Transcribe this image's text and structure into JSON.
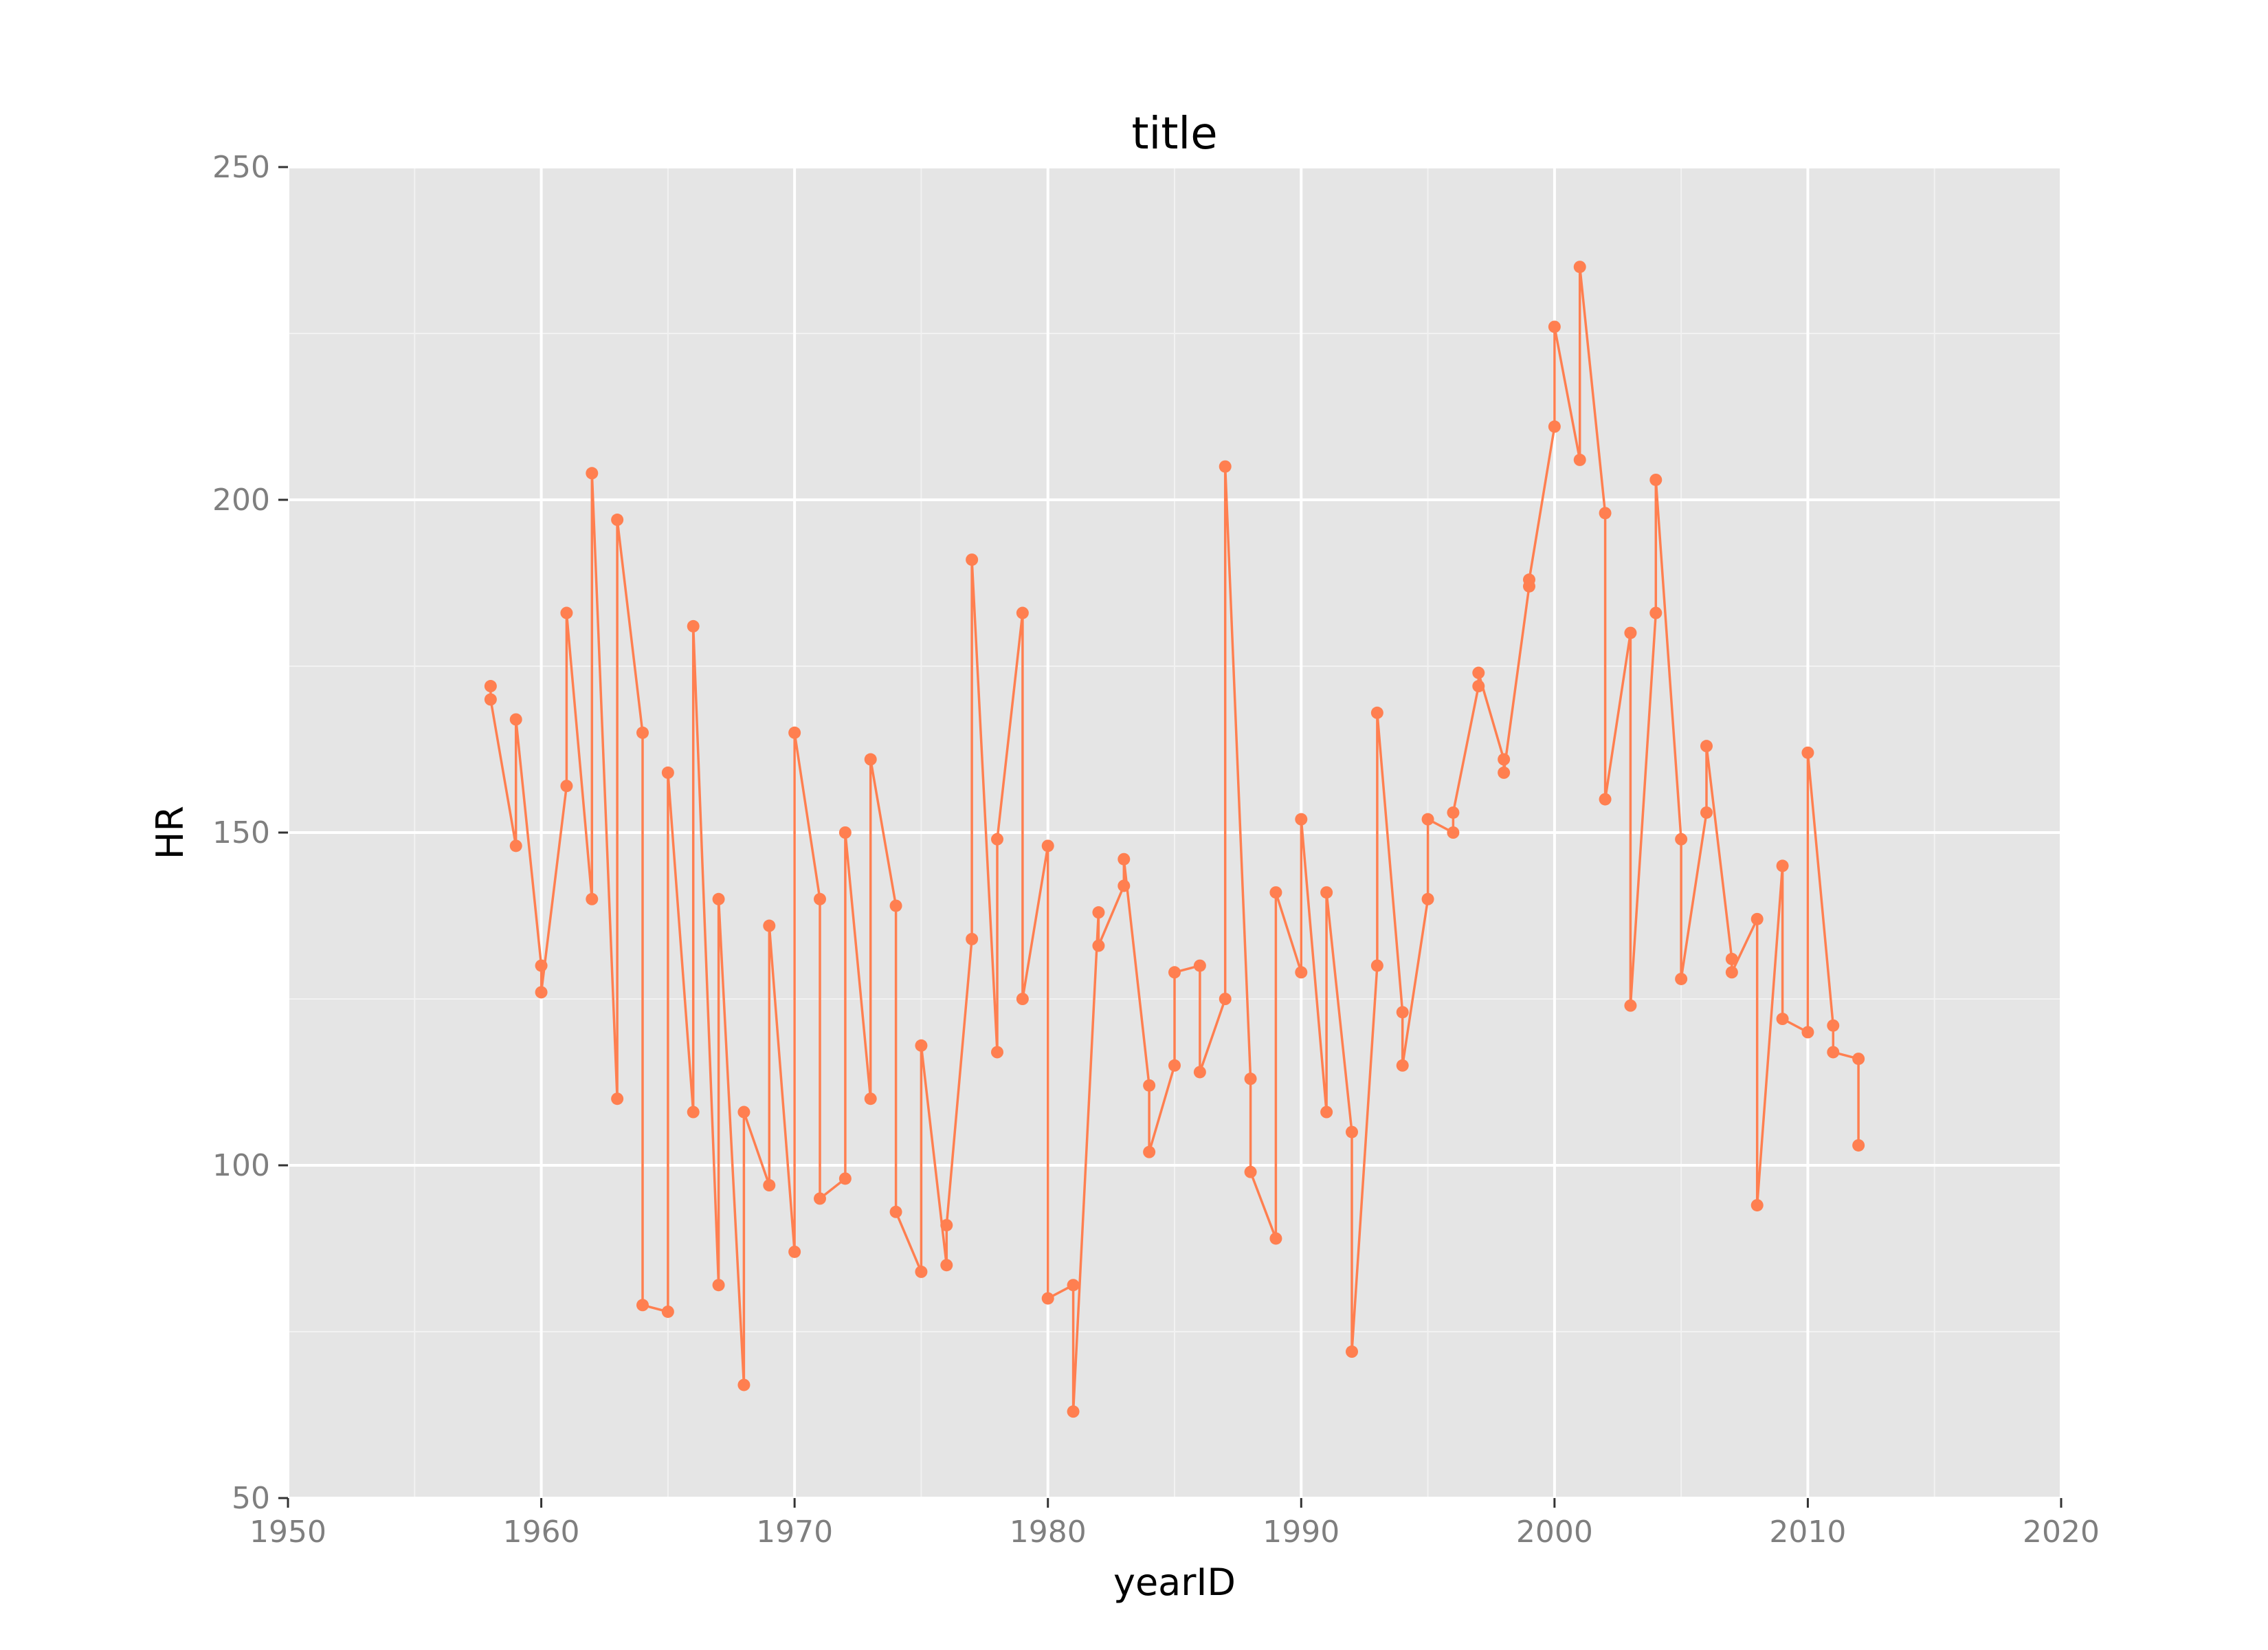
{
  "chart_data": {
    "type": "line",
    "title": "title",
    "xlabel": "yearID",
    "ylabel": "HR",
    "xlim": [
      1950,
      2020
    ],
    "ylim": [
      50,
      250
    ],
    "x_ticks": [
      1950,
      1960,
      1970,
      1980,
      1990,
      2000,
      2010,
      2020
    ],
    "y_ticks": [
      50,
      100,
      150,
      200,
      250
    ],
    "x_tick_labels": [
      "1950",
      "1960",
      "1970",
      "1980",
      "1990",
      "2000",
      "2010",
      "2020"
    ],
    "y_tick_labels": [
      "50",
      "100",
      "150",
      "200",
      "250"
    ],
    "grid": true,
    "legend": "none",
    "colors": {
      "series": "#ff7f50",
      "panel": "#e5e5e5",
      "grid_major": "#ffffff",
      "grid_minor": "#f2f2f2",
      "tick_text": "#7f7f7f"
    },
    "series": [
      {
        "markers": true,
        "points": [
          [
            1958,
            172
          ],
          [
            1958,
            170
          ],
          [
            1959,
            148
          ],
          [
            1959,
            167
          ],
          [
            1960,
            130
          ],
          [
            1960,
            126
          ],
          [
            1961,
            157
          ],
          [
            1961,
            183
          ],
          [
            1962,
            140
          ],
          [
            1962,
            204
          ],
          [
            1963,
            110
          ],
          [
            1963,
            197
          ],
          [
            1964,
            165
          ],
          [
            1964,
            79
          ],
          [
            1965,
            78
          ],
          [
            1965,
            159
          ],
          [
            1966,
            108
          ],
          [
            1966,
            181
          ],
          [
            1967,
            82
          ],
          [
            1967,
            140
          ],
          [
            1968,
            67
          ],
          [
            1968,
            108
          ],
          [
            1969,
            97
          ],
          [
            1969,
            136
          ],
          [
            1970,
            87
          ],
          [
            1970,
            165
          ],
          [
            1971,
            140
          ],
          [
            1971,
            95
          ],
          [
            1972,
            98
          ],
          [
            1972,
            150
          ],
          [
            1973,
            110
          ],
          [
            1973,
            161
          ],
          [
            1974,
            139
          ],
          [
            1974,
            93
          ],
          [
            1975,
            84
          ],
          [
            1975,
            118
          ],
          [
            1976,
            85
          ],
          [
            1976,
            91
          ],
          [
            1977,
            134
          ],
          [
            1977,
            191
          ],
          [
            1978,
            117
          ],
          [
            1978,
            149
          ],
          [
            1979,
            183
          ],
          [
            1979,
            125
          ],
          [
            1980,
            148
          ],
          [
            1980,
            80
          ],
          [
            1981,
            82
          ],
          [
            1981,
            63
          ],
          [
            1982,
            138
          ],
          [
            1982,
            133
          ],
          [
            1983,
            142
          ],
          [
            1983,
            146
          ],
          [
            1984,
            112
          ],
          [
            1984,
            102
          ],
          [
            1985,
            115
          ],
          [
            1985,
            129
          ],
          [
            1986,
            130
          ],
          [
            1986,
            114
          ],
          [
            1987,
            125
          ],
          [
            1987,
            205
          ],
          [
            1988,
            113
          ],
          [
            1988,
            99
          ],
          [
            1989,
            89
          ],
          [
            1989,
            141
          ],
          [
            1990,
            129
          ],
          [
            1990,
            152
          ],
          [
            1991,
            108
          ],
          [
            1991,
            141
          ],
          [
            1992,
            105
          ],
          [
            1992,
            72
          ],
          [
            1993,
            130
          ],
          [
            1993,
            168
          ],
          [
            1994,
            123
          ],
          [
            1994,
            115
          ],
          [
            1995,
            140
          ],
          [
            1995,
            152
          ],
          [
            1996,
            150
          ],
          [
            1996,
            153
          ],
          [
            1997,
            172
          ],
          [
            1997,
            174
          ],
          [
            1998,
            161
          ],
          [
            1998,
            159
          ],
          [
            1999,
            187
          ],
          [
            1999,
            188
          ],
          [
            2000,
            211
          ],
          [
            2000,
            226
          ],
          [
            2001,
            206
          ],
          [
            2001,
            235
          ],
          [
            2002,
            198
          ],
          [
            2002,
            155
          ],
          [
            2003,
            180
          ],
          [
            2003,
            124
          ],
          [
            2004,
            183
          ],
          [
            2004,
            203
          ],
          [
            2005,
            149
          ],
          [
            2005,
            128
          ],
          [
            2006,
            153
          ],
          [
            2006,
            163
          ],
          [
            2007,
            131
          ],
          [
            2007,
            129
          ],
          [
            2008,
            137
          ],
          [
            2008,
            94
          ],
          [
            2009,
            145
          ],
          [
            2009,
            122
          ],
          [
            2010,
            120
          ],
          [
            2010,
            162
          ],
          [
            2011,
            121
          ],
          [
            2011,
            117
          ],
          [
            2012,
            116
          ],
          [
            2012,
            103
          ]
        ]
      }
    ]
  }
}
